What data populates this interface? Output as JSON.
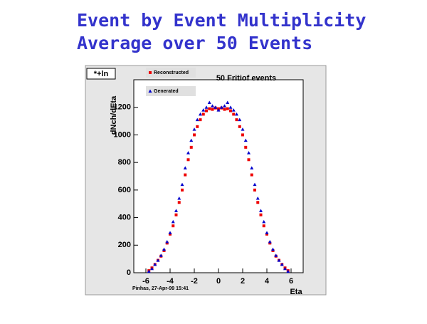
{
  "chart_data": {
    "type": "scatter",
    "title": "Event by Event Multiplicity",
    "subtitle": "Average over 50 Events",
    "panel_label": "*+ln",
    "plot_title": "50 Fritiof events",
    "xlabel": "Eta",
    "ylabel": "dNch/dEta",
    "footer": "Pinhas, 27-Apr-99 15:41",
    "x": [
      -5.75,
      -5.5,
      -5.25,
      -5,
      -4.75,
      -4.5,
      -4.25,
      -4,
      -3.75,
      -3.5,
      -3.25,
      -3,
      -2.75,
      -2.5,
      -2.25,
      -2,
      -1.75,
      -1.5,
      -1.25,
      -1,
      -0.75,
      -0.5,
      -0.25,
      0,
      0.25,
      0.5,
      0.75,
      1,
      1.25,
      1.5,
      1.75,
      2,
      2.25,
      2.5,
      2.75,
      3,
      3.25,
      3.5,
      3.75,
      4,
      4.25,
      4.5,
      4.75,
      5,
      5.25,
      5.5,
      5.75
    ],
    "series": [
      {
        "name": "Reconstructed",
        "color": "#ee0000",
        "marker": "square",
        "values": [
          15,
          35,
          60,
          90,
          120,
          160,
          215,
          280,
          340,
          420,
          510,
          600,
          710,
          820,
          910,
          1000,
          1060,
          1110,
          1150,
          1175,
          1190,
          1185,
          1195,
          1190,
          1195,
          1185,
          1190,
          1175,
          1150,
          1110,
          1060,
          1000,
          910,
          820,
          710,
          600,
          510,
          420,
          340,
          280,
          215,
          160,
          120,
          90,
          60,
          35,
          15
        ]
      },
      {
        "name": "Generated",
        "color": "#0000cc",
        "marker": "triangle",
        "values": [
          10,
          30,
          60,
          90,
          125,
          170,
          225,
          290,
          370,
          450,
          540,
          640,
          760,
          870,
          960,
          1040,
          1110,
          1150,
          1180,
          1200,
          1235,
          1210,
          1200,
          1180,
          1200,
          1210,
          1235,
          1200,
          1180,
          1150,
          1110,
          1040,
          960,
          870,
          760,
          640,
          540,
          450,
          370,
          290,
          225,
          170,
          125,
          90,
          60,
          30,
          10
        ]
      }
    ],
    "xlim": [
      -7,
      7
    ],
    "ylim": [
      0,
      1400
    ],
    "xticks": [
      -6,
      -4,
      -2,
      0,
      2,
      4,
      6
    ],
    "yticks": [
      0,
      200,
      400,
      600,
      800,
      1000,
      1200
    ],
    "grid": false,
    "legend": "upper left"
  }
}
